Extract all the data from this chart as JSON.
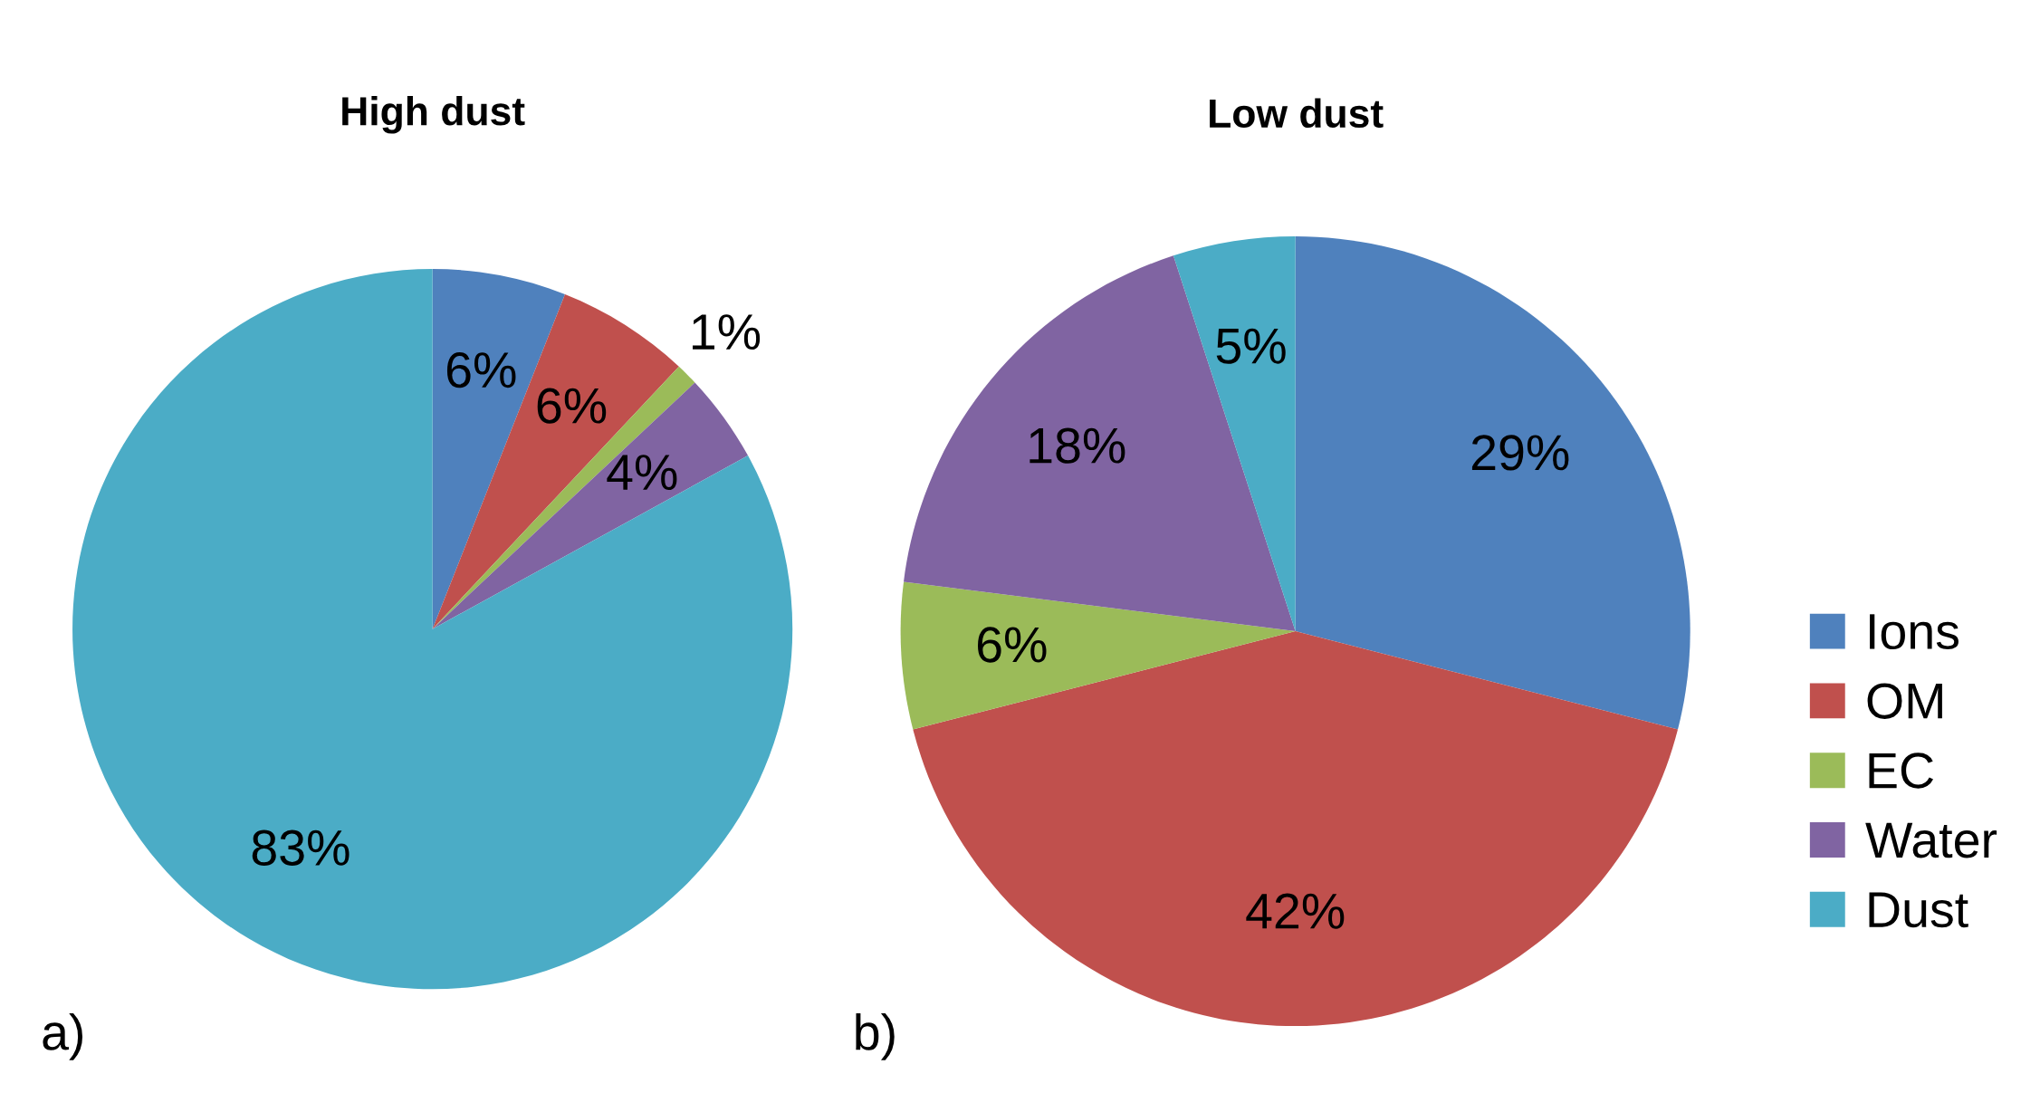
{
  "chart_data": [
    {
      "type": "pie",
      "title": "High dust",
      "categories": [
        null,
        null,
        null,
        null,
        null
      ],
      "values": [
        6,
        6,
        1,
        4,
        83
      ],
      "colors": [
        "#4f81bd",
        "#c0504d",
        "#9bbb59",
        "#8064a2",
        "#4bacc6"
      ],
      "value_labels": [
        "6%",
        "6%",
        "1%",
        "4%",
        "83%"
      ],
      "legend": false,
      "annotations": [
        "a)"
      ]
    },
    {
      "type": "pie",
      "title": "Low dust",
      "categories": [
        "Ions",
        "OM",
        "EC",
        "Water",
        "Dust"
      ],
      "values": [
        29,
        42,
        6,
        18,
        5
      ],
      "colors": [
        "#4f81bd",
        "#c0504d",
        "#9bbb59",
        "#8064a2",
        "#4bacc6"
      ],
      "value_labels": [
        "29%",
        "42%",
        "6%",
        "18%",
        "5%"
      ],
      "legend": "right",
      "annotations": [
        "b)"
      ]
    }
  ]
}
